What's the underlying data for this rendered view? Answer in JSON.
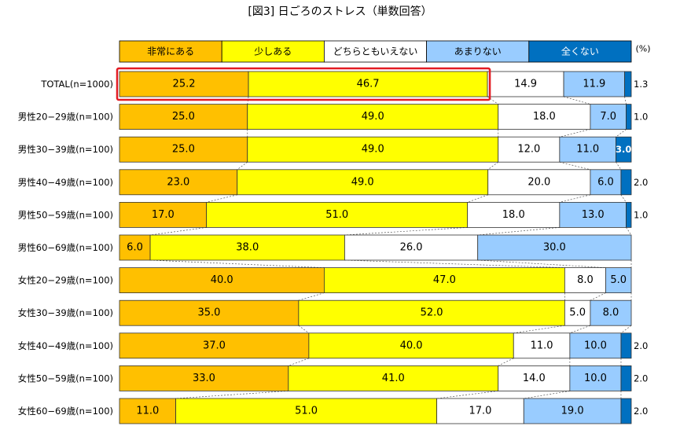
{
  "chart_data": {
    "type": "bar",
    "orientation": "horizontal",
    "stacked": true,
    "percent_stacked": true,
    "title": "[図3] 日ごろのストレス（単数回答）",
    "unit_label": "(%)",
    "legend_position": "top",
    "categories": [
      "TOTAL(n=1000)",
      "男性20−29歳(n=100)",
      "男性30−39歳(n=100)",
      "男性40−49歳(n=100)",
      "男性50−59歳(n=100)",
      "男性60−69歳(n=100)",
      "女性20−29歳(n=100)",
      "女性30−39歳(n=100)",
      "女性40−49歳(n=100)",
      "女性50−59歳(n=100)",
      "女性60−69歳(n=100)"
    ],
    "series": [
      {
        "name": "非常にある",
        "color": "#ffc000",
        "values": [
          25.2,
          25.0,
          25.0,
          23.0,
          17.0,
          6.0,
          40.0,
          35.0,
          37.0,
          33.0,
          11.0
        ]
      },
      {
        "name": "少しある",
        "color": "#ffff00",
        "values": [
          46.7,
          49.0,
          49.0,
          49.0,
          51.0,
          38.0,
          47.0,
          52.0,
          40.0,
          41.0,
          51.0
        ]
      },
      {
        "name": "どちらともいえない",
        "color": "#ffffff",
        "values": [
          14.9,
          18.0,
          12.0,
          20.0,
          18.0,
          26.0,
          8.0,
          5.0,
          11.0,
          14.0,
          17.0
        ]
      },
      {
        "name": "あまりない",
        "color": "#99ccff",
        "values": [
          11.9,
          7.0,
          11.0,
          6.0,
          13.0,
          30.0,
          5.0,
          8.0,
          10.0,
          10.0,
          19.0
        ]
      },
      {
        "name": "全くない",
        "color": "#0070c0",
        "values": [
          1.3,
          1.0,
          3.0,
          2.0,
          1.0,
          0.0,
          0.0,
          0.0,
          2.0,
          2.0,
          2.0
        ]
      }
    ],
    "value_labels": [
      [
        "25.2",
        "46.7",
        "14.9",
        "11.9",
        "1.3"
      ],
      [
        "25.0",
        "49.0",
        "18.0",
        "7.0",
        "1.0"
      ],
      [
        "25.0",
        "49.0",
        "12.0",
        "11.0",
        "3.0"
      ],
      [
        "23.0",
        "49.0",
        "20.0",
        "6.0",
        "2.0"
      ],
      [
        "17.0",
        "51.0",
        "18.0",
        "13.0",
        "1.0"
      ],
      [
        "6.0",
        "38.0",
        "26.0",
        "30.0",
        ""
      ],
      [
        "40.0",
        "47.0",
        "8.0",
        "5.0",
        ""
      ],
      [
        "35.0",
        "52.0",
        "5.0",
        "8.0",
        ""
      ],
      [
        "37.0",
        "40.0",
        "11.0",
        "10.0",
        "2.0"
      ],
      [
        "33.0",
        "41.0",
        "14.0",
        "10.0",
        "2.0"
      ],
      [
        "11.0",
        "51.0",
        "17.0",
        "19.0",
        "2.0"
      ]
    ],
    "highlight": {
      "row": 0,
      "series": [
        0,
        1
      ],
      "color": "#e31b23"
    },
    "series_lines": true
  }
}
